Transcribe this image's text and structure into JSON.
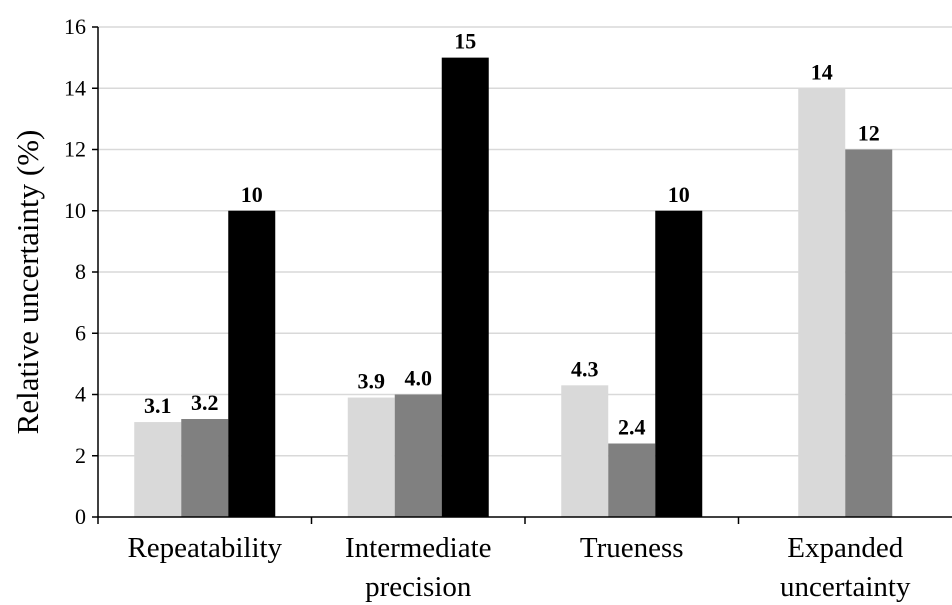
{
  "chart_data": {
    "type": "bar",
    "title": "",
    "xlabel": "",
    "ylabel": "Relative uncertainty (%)",
    "ylim": [
      0,
      16
    ],
    "yticks": [
      0,
      2,
      4,
      6,
      8,
      10,
      12,
      14,
      16
    ],
    "grid": true,
    "legend": "none",
    "categories": [
      [
        "Repeatability"
      ],
      [
        "Intermediate",
        "precision"
      ],
      [
        "Trueness"
      ],
      [
        "Expanded",
        "uncertainty"
      ]
    ],
    "series": [
      {
        "color": "#d9d9d9",
        "values": [
          3.1,
          3.9,
          4.3,
          14
        ],
        "labels": [
          "3.1",
          "3.9",
          "4.3",
          "14"
        ]
      },
      {
        "color": "#808080",
        "values": [
          3.2,
          4.0,
          2.4,
          12
        ],
        "labels": [
          "3.2",
          "4.0",
          "2.4",
          "12"
        ]
      },
      {
        "color": "#000000",
        "values": [
          10,
          15,
          10,
          null
        ],
        "labels": [
          "10",
          "15",
          "10",
          ""
        ]
      }
    ]
  }
}
